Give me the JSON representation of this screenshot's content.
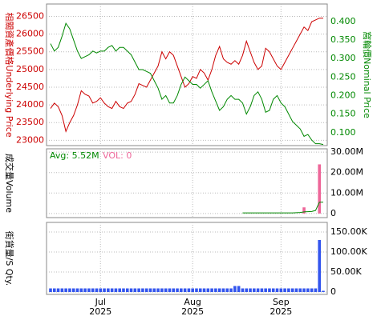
{
  "chart_data": [
    {
      "type": "line",
      "ylabel": "相關資產價格Underlying Price",
      "y2label": "窩輪價Nominal Price",
      "ylim": [
        22850,
        26850
      ],
      "yticks": [
        23000,
        23500,
        24000,
        24500,
        25000,
        25500,
        26000,
        26500
      ],
      "y2lim": [
        0.065,
        0.447
      ],
      "y2ticks": [
        {
          "value": 0.1,
          "label": "0.100"
        },
        {
          "value": 0.15,
          "label": "0.150"
        },
        {
          "value": 0.2,
          "label": "0.200"
        },
        {
          "value": 0.25,
          "label": "0.250"
        },
        {
          "value": 0.3,
          "label": "0.300"
        },
        {
          "value": 0.35,
          "label": "0.350"
        },
        {
          "value": 0.4,
          "label": "0.400"
        }
      ],
      "grid": true,
      "series": [
        {
          "color": "#cc0000",
          "axis": "y",
          "values": [
            23900,
            24050,
            23950,
            23700,
            23250,
            23500,
            23700,
            24000,
            24400,
            24300,
            24250,
            24050,
            24100,
            24200,
            24050,
            23950,
            23900,
            24100,
            23950,
            23900,
            24050,
            24100,
            24300,
            24600,
            24550,
            24500,
            24700,
            24900,
            25100,
            25500,
            25300,
            25500,
            25400,
            25100,
            24800,
            24500,
            24600,
            24800,
            24750,
            25000,
            24900,
            24700,
            25000,
            25400,
            25650,
            25300,
            25200,
            25150,
            25250,
            25150,
            25400,
            25800,
            25500,
            25200,
            25000,
            25100,
            25600,
            25500,
            25300,
            25100,
            25000,
            25200,
            25400,
            25600,
            25800,
            26000,
            26200,
            26100,
            26350,
            26400,
            26450,
            26450
          ]
        },
        {
          "color": "#008800",
          "axis": "y2",
          "values": [
            0.34,
            0.32,
            0.33,
            0.36,
            0.395,
            0.38,
            0.35,
            0.32,
            0.3,
            0.305,
            0.31,
            0.32,
            0.315,
            0.32,
            0.32,
            0.33,
            0.335,
            0.32,
            0.33,
            0.33,
            0.32,
            0.31,
            0.29,
            0.27,
            0.27,
            0.265,
            0.26,
            0.24,
            0.22,
            0.19,
            0.2,
            0.18,
            0.18,
            0.2,
            0.23,
            0.25,
            0.24,
            0.23,
            0.23,
            0.22,
            0.23,
            0.24,
            0.21,
            0.185,
            0.16,
            0.17,
            0.19,
            0.2,
            0.19,
            0.19,
            0.18,
            0.15,
            0.17,
            0.2,
            0.21,
            0.19,
            0.155,
            0.16,
            0.19,
            0.2,
            0.18,
            0.17,
            0.15,
            0.13,
            0.12,
            0.11,
            0.09,
            0.095,
            0.08,
            0.07,
            0.07,
            0.068
          ]
        }
      ]
    },
    {
      "type": "bar",
      "ylabel": "成交量Volume",
      "avg_label": "Avg: 5.52M",
      "vol_label": "VOL: 0",
      "ylim": [
        -2000000,
        31600000
      ],
      "yticks": [
        0,
        {
          "value": 10000000,
          "label": "10.00M"
        },
        {
          "value": 20000000,
          "label": "20.00M"
        },
        {
          "value": 30000000,
          "label": "30.00M"
        }
      ],
      "grid": true,
      "series": [
        {
          "color": "#ee6699",
          "kind": "bar",
          "values": [
            0,
            0,
            0,
            0,
            0,
            0,
            0,
            0,
            0,
            0,
            0,
            0,
            0,
            0,
            0,
            0,
            0,
            0,
            0,
            0,
            0,
            0,
            0,
            0,
            0,
            0,
            0,
            0,
            0,
            0,
            0,
            0,
            0,
            0,
            0,
            0,
            0,
            0,
            0,
            0,
            0,
            0,
            0,
            0,
            0,
            0,
            0,
            0,
            0,
            0,
            0,
            0,
            0,
            0,
            0,
            0,
            0,
            0,
            0,
            0,
            0,
            0,
            0,
            0,
            0,
            0,
            3000000,
            0,
            0,
            0,
            24000000,
            0
          ]
        },
        {
          "color": "#008800",
          "kind": "line",
          "values": [
            null,
            null,
            null,
            null,
            null,
            null,
            null,
            null,
            null,
            null,
            null,
            null,
            null,
            null,
            null,
            null,
            null,
            null,
            null,
            null,
            null,
            null,
            null,
            null,
            null,
            null,
            null,
            null,
            null,
            null,
            null,
            null,
            null,
            null,
            null,
            null,
            null,
            null,
            null,
            null,
            null,
            null,
            null,
            null,
            null,
            null,
            null,
            null,
            null,
            null,
            300000,
            300000,
            300000,
            300000,
            300000,
            300000,
            300000,
            300000,
            300000,
            300000,
            300000,
            300000,
            300000,
            300000,
            400000,
            500000,
            800000,
            900000,
            1000000,
            1500000,
            5520000,
            5520000
          ]
        }
      ]
    },
    {
      "type": "bar",
      "ylabel": "街貨量/S Qty.",
      "ylim": [
        -6000,
        174000
      ],
      "yticks": [
        0,
        {
          "value": 50000,
          "label": "50.00K"
        },
        {
          "value": 100000,
          "label": "100.00K"
        },
        {
          "value": 150000,
          "label": "150.00K"
        }
      ],
      "grid": true,
      "categories": [
        null,
        null,
        null,
        null,
        null,
        null,
        null,
        null,
        null,
        null,
        null,
        null,
        null,
        "Jul\n2025",
        null,
        null,
        null,
        null,
        null,
        null,
        null,
        null,
        null,
        null,
        null,
        null,
        null,
        null,
        null,
        null,
        null,
        null,
        null,
        null,
        null,
        null,
        null,
        "Aug\n2025",
        null,
        null,
        null,
        null,
        null,
        null,
        null,
        null,
        null,
        null,
        null,
        null,
        null,
        null,
        null,
        null,
        null,
        null,
        null,
        null,
        null,
        null,
        "Sep\n2025",
        null,
        null,
        null,
        null,
        null,
        null,
        null,
        null,
        null,
        null,
        null
      ],
      "series": [
        {
          "color": "#3355ee",
          "kind": "bar",
          "values": [
            9000,
            9000,
            9000,
            9000,
            9000,
            9000,
            9000,
            9000,
            9000,
            9000,
            9000,
            9000,
            9000,
            9000,
            9000,
            9000,
            9000,
            9000,
            9000,
            9000,
            9000,
            9000,
            9000,
            9000,
            9000,
            9000,
            9000,
            9000,
            9000,
            9000,
            9000,
            9000,
            9000,
            9000,
            9000,
            9000,
            9000,
            9000,
            9000,
            9000,
            9000,
            9000,
            9000,
            9000,
            9000,
            9000,
            9000,
            9000,
            15000,
            15000,
            9000,
            9000,
            9000,
            9000,
            9000,
            9000,
            9000,
            9000,
            9000,
            9000,
            9000,
            9000,
            9000,
            9000,
            9000,
            9000,
            9000,
            9000,
            9000,
            9000,
            130000,
            3000
          ]
        }
      ]
    }
  ]
}
